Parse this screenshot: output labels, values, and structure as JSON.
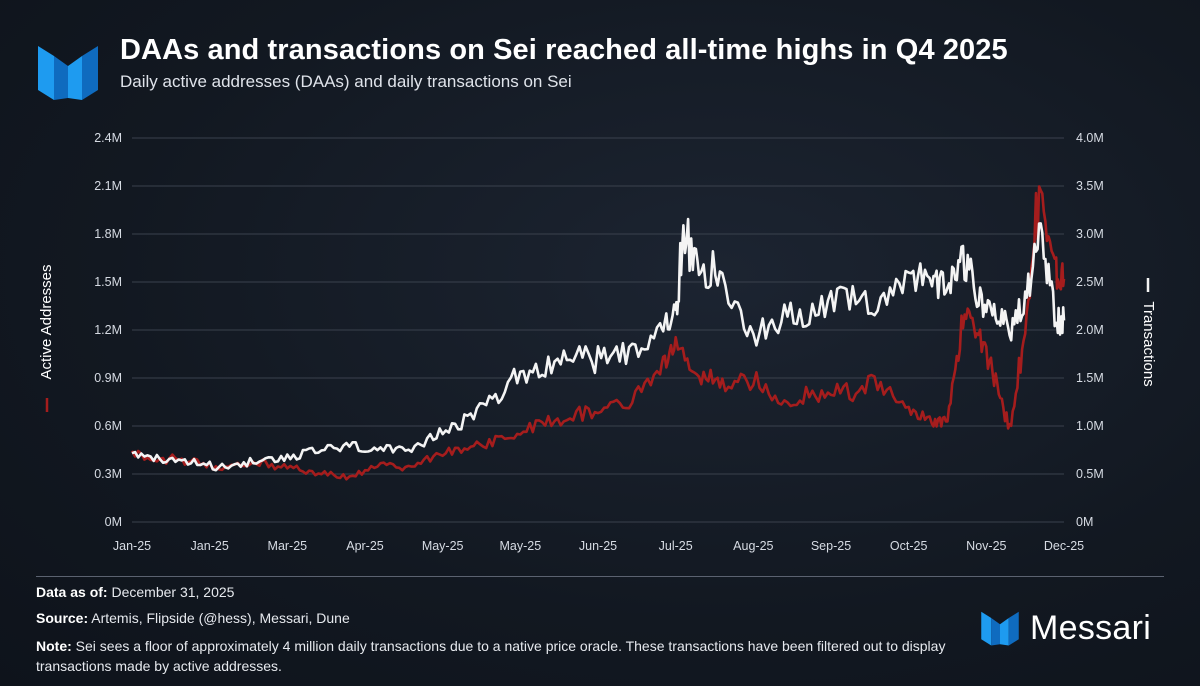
{
  "header": {
    "title": "DAAs and transactions on Sei reached all-time highs in Q4 2025",
    "subtitle": "Daily active addresses (DAAs) and daily transactions on Sei"
  },
  "colors": {
    "daa": "#a51d1d",
    "transactions": "#f4f4f4",
    "accent": "#1e9bf0",
    "grid": "#3a414d"
  },
  "footer": {
    "data_label": "Data as of:",
    "data_value": "December 31, 2025",
    "source_label": "Source:",
    "source_value": "Artemis, Flipside (@hess), Messari, Dune",
    "note_label": "Note:",
    "note_value": "Sei sees a floor of approximately 4 million daily transactions due to a native price oracle. These transactions have been filtered out to display transactions made by active addresses.",
    "brand": "Messari"
  },
  "chart_data": {
    "type": "line",
    "x_tick_labels": [
      "Jan-25",
      "Jan-25",
      "Mar-25",
      "Apr-25",
      "May-25",
      "May-25",
      "Jun-25",
      "Jul-25",
      "Aug-25",
      "Sep-25",
      "Oct-25",
      "Nov-25",
      "Dec-25"
    ],
    "y_left": {
      "label": "Active Addresses",
      "ticks": [
        "0M",
        "0.3M",
        "0.6M",
        "0.9M",
        "1.2M",
        "1.5M",
        "1.8M",
        "2.1M",
        "2.4M"
      ],
      "range": [
        0,
        2400000
      ]
    },
    "y_right": {
      "label": "Transactions",
      "ticks": [
        "0M",
        "0.5M",
        "1.0M",
        "1.5M",
        "2.0M",
        "2.5M",
        "3.0M",
        "3.5M",
        "4.0M"
      ],
      "range": [
        0,
        4000000
      ]
    },
    "grid": true,
    "legend": "axis-titles",
    "series": [
      {
        "name": "Active Addresses",
        "axis": "left",
        "x": [
          0,
          0.4,
          0.8,
          1.2,
          1.6,
          2.0,
          2.4,
          2.8,
          3.2,
          3.6,
          4.0,
          4.4,
          4.8,
          5.2,
          5.6,
          6.0,
          6.4,
          6.8,
          7.0,
          7.3,
          7.6,
          8.0,
          8.4,
          8.8,
          9.2,
          9.6,
          10.0,
          10.3,
          10.5,
          10.7,
          10.9,
          11.1,
          11.3,
          11.5,
          11.7,
          11.9,
          12.0
        ],
        "y": [
          430000,
          390000,
          380000,
          330000,
          370000,
          340000,
          310000,
          280000,
          360000,
          340000,
          430000,
          480000,
          520000,
          600000,
          650000,
          710000,
          740000,
          950000,
          1080000,
          920000,
          850000,
          890000,
          750000,
          800000,
          820000,
          880000,
          680000,
          640000,
          620000,
          1280000,
          1200000,
          900000,
          580000,
          1150000,
          2080000,
          1550000,
          1520000
        ]
      },
      {
        "name": "Transactions",
        "axis": "right",
        "x": [
          0,
          0.4,
          0.8,
          1.2,
          1.6,
          2.0,
          2.4,
          2.8,
          3.2,
          3.6,
          4.0,
          4.4,
          4.8,
          5.2,
          5.6,
          6.0,
          6.4,
          6.8,
          7.0,
          7.1,
          7.3,
          7.6,
          8.0,
          8.4,
          8.8,
          9.2,
          9.6,
          10.0,
          10.3,
          10.5,
          10.7,
          10.9,
          11.1,
          11.3,
          11.5,
          11.7,
          11.9,
          12.0
        ],
        "y": [
          700000,
          640000,
          620000,
          560000,
          640000,
          680000,
          740000,
          790000,
          760000,
          720000,
          950000,
          1120000,
          1380000,
          1580000,
          1720000,
          1720000,
          1770000,
          2000000,
          2150000,
          2900000,
          2650000,
          2450000,
          1950000,
          2150000,
          2200000,
          2300000,
          2300000,
          2600000,
          2500000,
          2400000,
          2750000,
          2300000,
          2200000,
          2000000,
          2300000,
          3000000,
          2100000,
          2100000
        ]
      }
    ]
  }
}
